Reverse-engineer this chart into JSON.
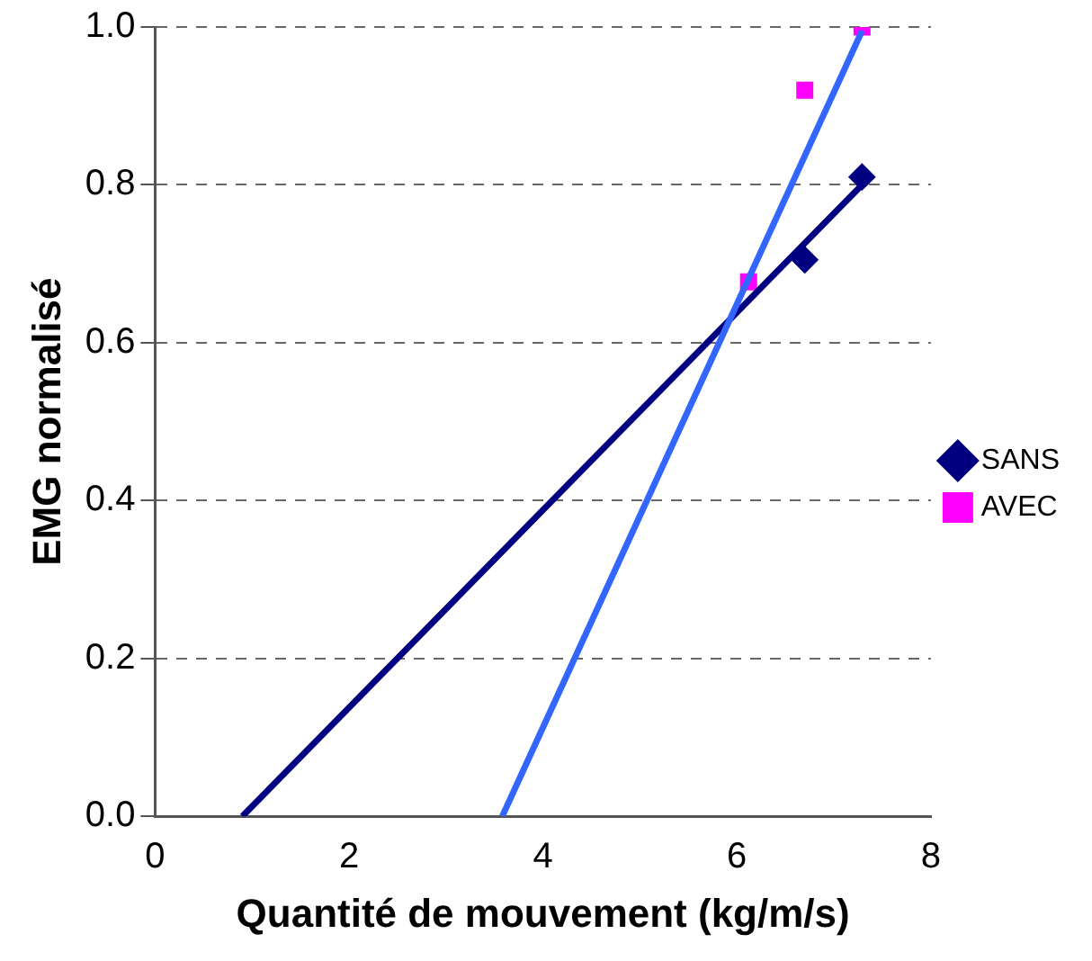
{
  "chart_data": {
    "type": "scatter",
    "xlabel": "Quantité de mouvement (kg/m/s)",
    "ylabel": "EMG normalisé",
    "series": [
      {
        "name": "SANS",
        "color": "#000080",
        "marker": "diamond",
        "x": [
          null,
          6.7,
          7.29
        ],
        "values": [
          null,
          0.705,
          0.81
        ]
      },
      {
        "name": "AVEC",
        "color": "#ff00ff",
        "marker": "square",
        "x": [
          6.12,
          6.7,
          7.29
        ],
        "values": [
          0.677,
          0.92,
          1.0
        ]
      },
      {
        "type": "line",
        "color": "#000080",
        "x": [
          0.9,
          7.29
        ],
        "values": [
          0,
          0.8
        ]
      },
      {
        "type": "line",
        "color": "#3366ff",
        "x": [
          3.58,
          7.29
        ],
        "values": [
          0,
          0.995
        ]
      }
    ],
    "xlim": [
      0,
      8
    ],
    "xticks": [
      0,
      2,
      4,
      6,
      8
    ],
    "ylim": [
      0,
      1
    ],
    "yticks": [
      {
        "value": 0,
        "label": "0.0"
      },
      {
        "value": 0.2,
        "label": "0.2"
      },
      {
        "value": 0.4,
        "label": "0.4"
      },
      {
        "value": 0.6,
        "label": "0.6"
      },
      {
        "value": 0.8,
        "label": "0.8"
      },
      {
        "value": 1,
        "label": "1.0"
      }
    ],
    "grid": "y",
    "legend": "right"
  }
}
